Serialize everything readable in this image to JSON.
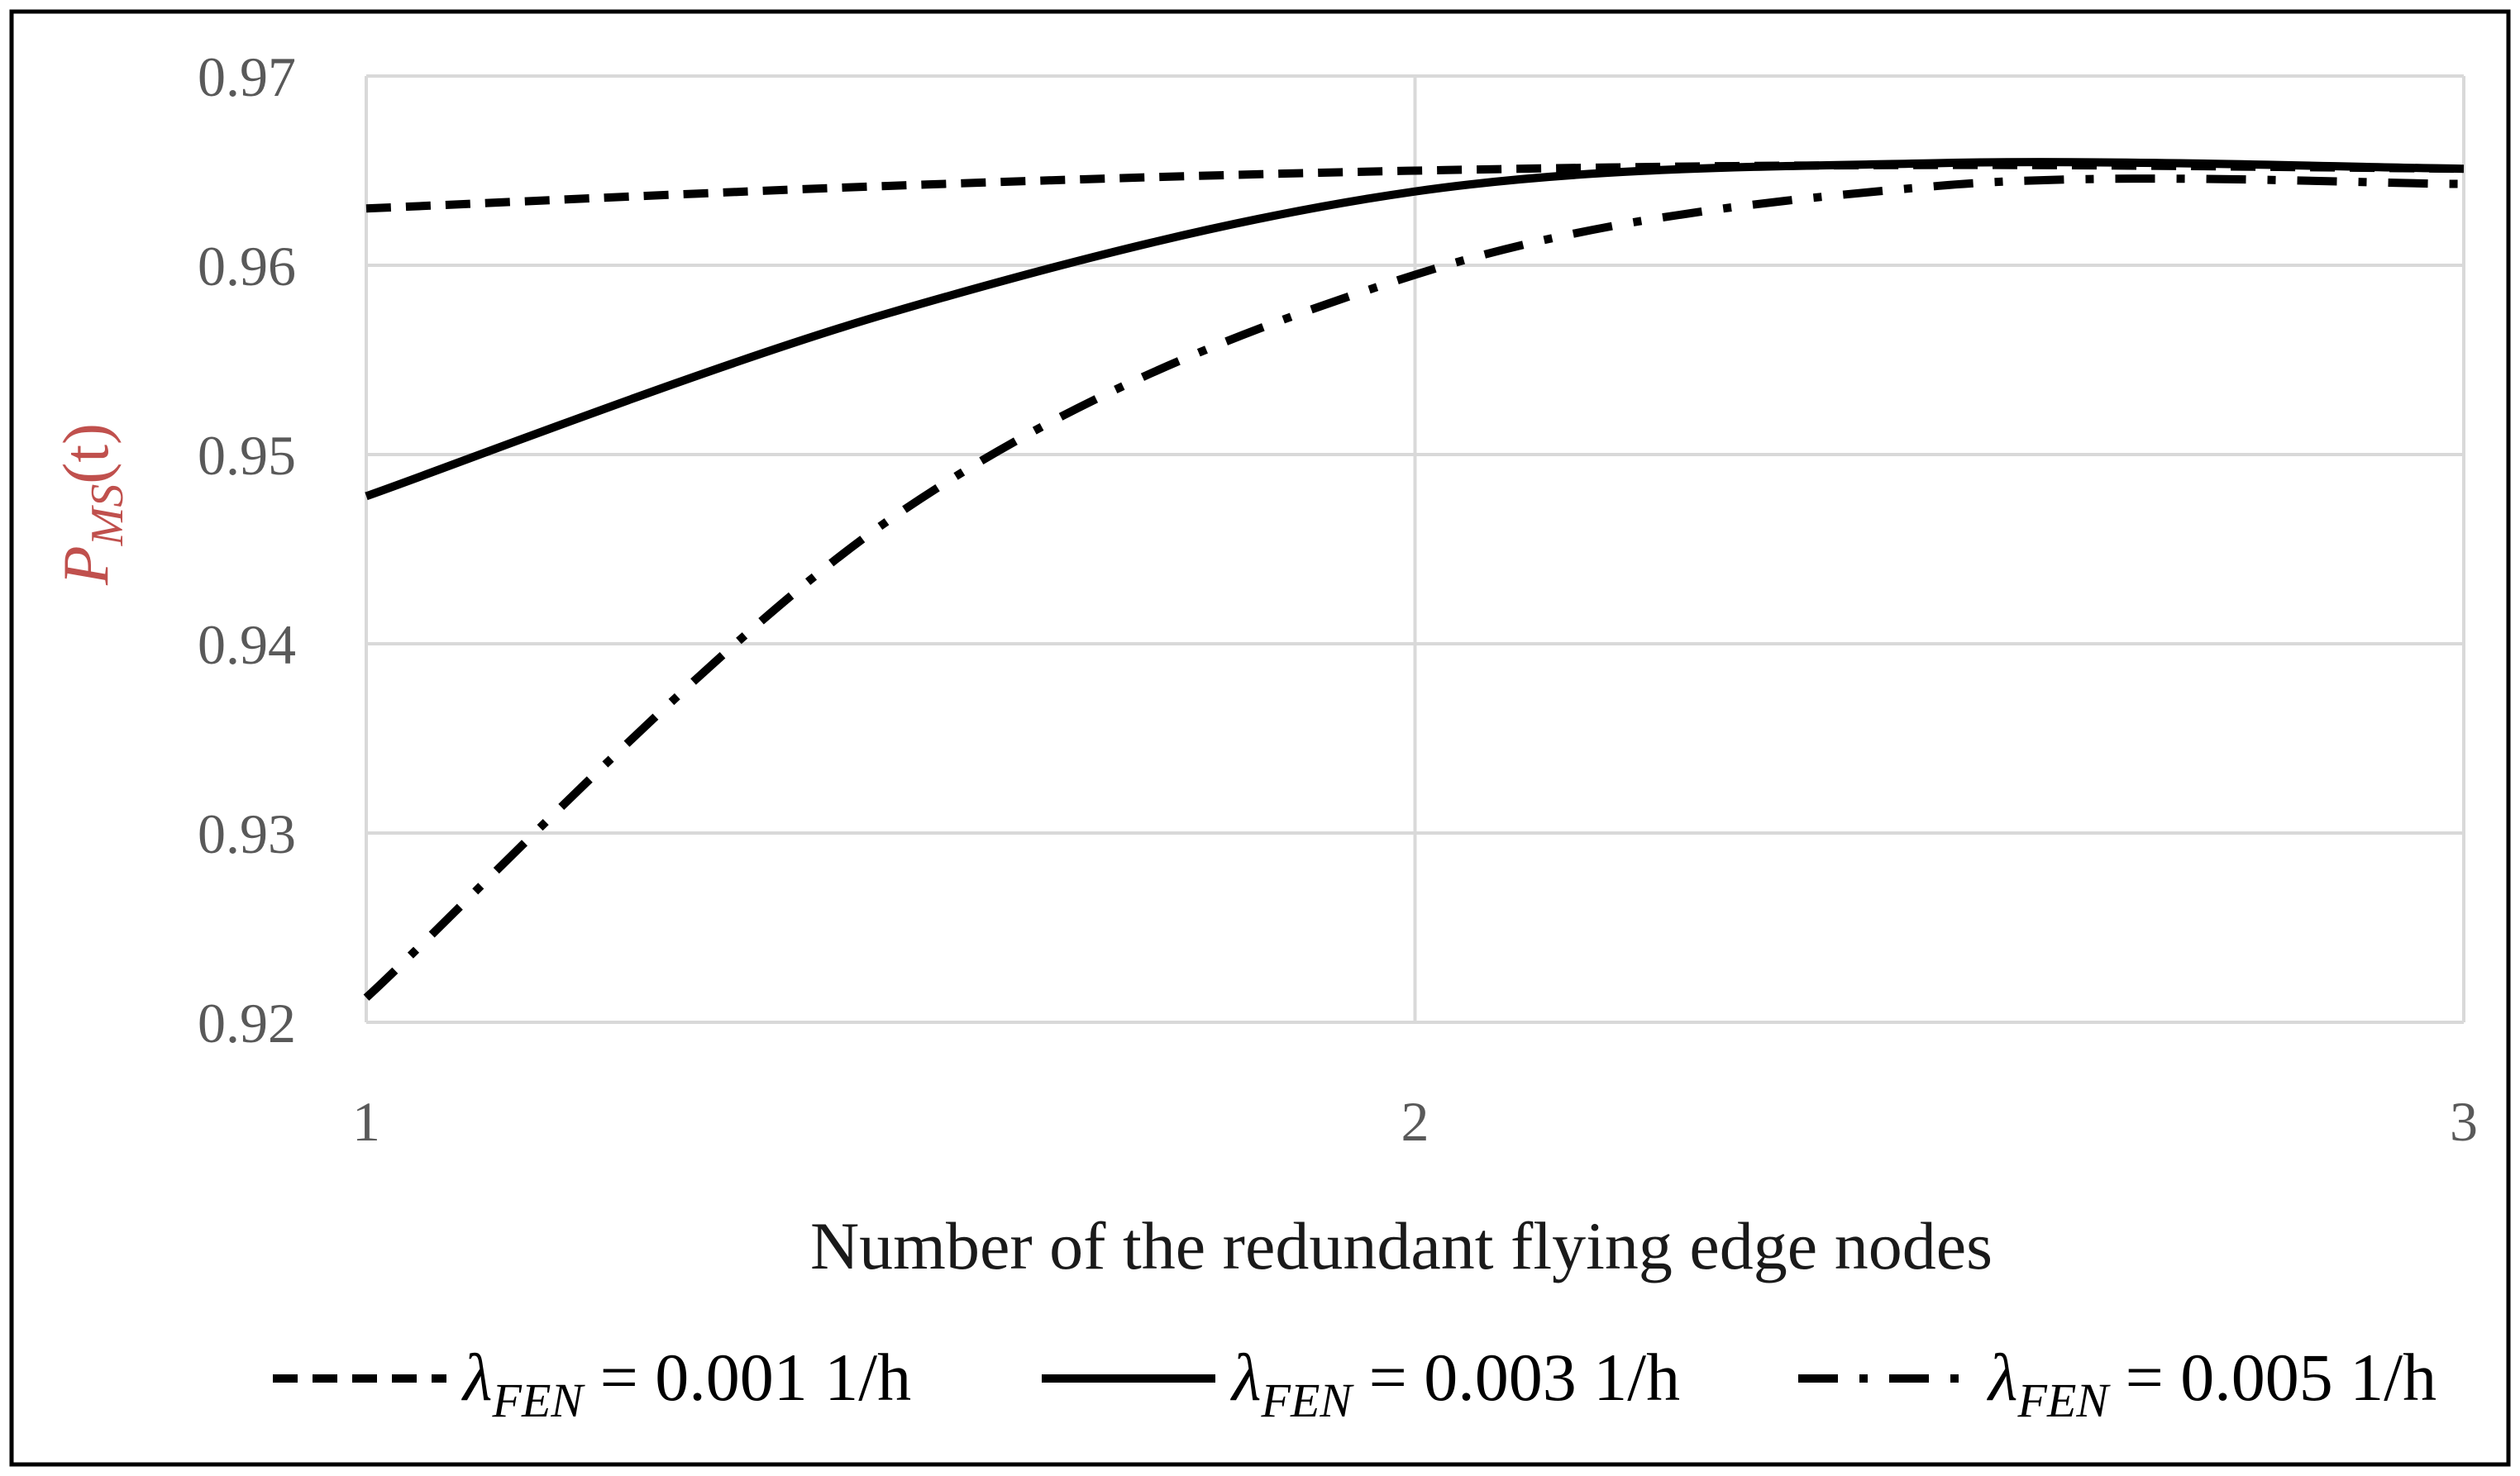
{
  "chart_data": {
    "type": "line",
    "title": "",
    "xlabel": "Number of the redundant flying edge nodes",
    "ylabel": "P_MS(t)",
    "ylabel_parts": {
      "base": "P",
      "sub": "MS",
      "arg": "(t)"
    },
    "x": [
      1,
      1.5,
      2,
      2.5,
      3
    ],
    "xlim": [
      1,
      3
    ],
    "ylim": [
      0.92,
      0.97
    ],
    "x_ticks": [
      "1",
      "2",
      "3"
    ],
    "x_tick_values": [
      1,
      2,
      3
    ],
    "y_ticks": [
      "0.92",
      "0.93",
      "0.94",
      "0.95",
      "0.96",
      "0.97"
    ],
    "y_tick_values": [
      0.92,
      0.93,
      0.94,
      0.95,
      0.96,
      0.97
    ],
    "grid": true,
    "legend_position": "bottom",
    "series": [
      {
        "name": "λFEN = 0.001 1/h",
        "symbol": "λ",
        "sub": "FEN",
        "value_text": "= 0.001 1/h",
        "style": "dashed",
        "values": [
          0.963,
          0.9642,
          0.965,
          0.9653,
          0.9651
        ]
      },
      {
        "name": "λFEN = 0.003 1/h",
        "symbol": "λ",
        "sub": "FEN",
        "value_text": "= 0.003 1/h",
        "style": "solid",
        "values": [
          0.9478,
          0.9575,
          0.9639,
          0.9654,
          0.9651
        ]
      },
      {
        "name": "λFEN = 0.005 1/h",
        "symbol": "λ",
        "sub": "FEN",
        "value_text": "= 0.005 1/h",
        "style": "dashdot",
        "values": [
          0.9213,
          0.9466,
          0.9595,
          0.9642,
          0.9643
        ]
      }
    ],
    "colors": {
      "line": "#000000",
      "grid": "#d9d9d9",
      "axis_title_y": "#c0504d",
      "tick": "#595959"
    }
  }
}
